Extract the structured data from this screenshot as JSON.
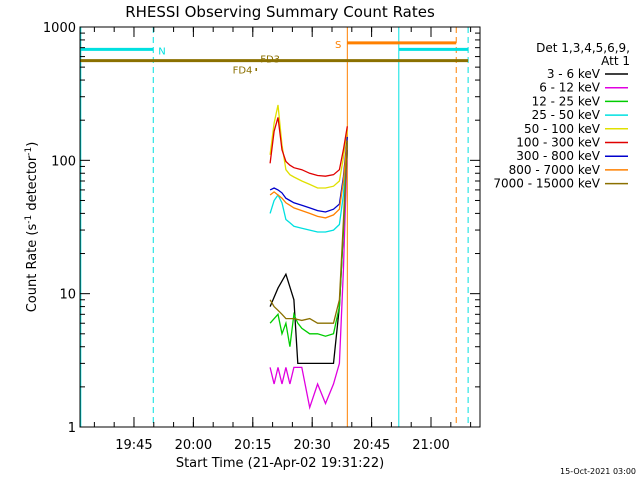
{
  "chart_data": {
    "type": "line",
    "title": "RHESSI Observing Summary Count Rates",
    "xlabel": "Start Time (21-Apr-02 19:31:22)",
    "ylabel_parts": [
      "Count Rate (s",
      "-1",
      " detector",
      "-1",
      ")"
    ],
    "yscale": "log",
    "ylim": [
      1,
      1000
    ],
    "xlim_minutes": [
      0,
      101
    ],
    "yticks": [
      {
        "value": 1,
        "label": "1"
      },
      {
        "value": 10,
        "label": "10"
      },
      {
        "value": 100,
        "label": "100"
      },
      {
        "value": 1000,
        "label": "1000"
      }
    ],
    "xticks": [
      {
        "minute": 13.63,
        "label": "19:45"
      },
      {
        "minute": 28.63,
        "label": "20:00"
      },
      {
        "minute": 43.63,
        "label": "20:15"
      },
      {
        "minute": 58.63,
        "label": "20:30"
      },
      {
        "minute": 73.63,
        "label": "20:45"
      },
      {
        "minute": 88.63,
        "label": "21:00"
      }
    ],
    "legend_header": [
      "Det 1,3,4,5,6,9,",
      "Att 1"
    ],
    "series": [
      {
        "name": "3 - 6 keV",
        "color": "#000000",
        "points": [
          [
            48,
            8
          ],
          [
            50,
            11
          ],
          [
            52,
            14
          ],
          [
            54,
            9
          ],
          [
            55,
            3
          ],
          [
            56,
            3
          ],
          [
            58,
            3
          ],
          [
            60,
            3
          ],
          [
            62,
            3
          ],
          [
            64,
            3
          ],
          [
            65.5,
            8
          ],
          [
            66.5,
            30
          ],
          [
            67.5,
            120
          ]
        ]
      },
      {
        "name": "6 - 12 keV",
        "color": "#e000e0",
        "points": [
          [
            48,
            2.8
          ],
          [
            49,
            2.1
          ],
          [
            50,
            2.8
          ],
          [
            51,
            2.1
          ],
          [
            52,
            2.8
          ],
          [
            53,
            2.1
          ],
          [
            54,
            2.8
          ],
          [
            56,
            2.8
          ],
          [
            58,
            1.4
          ],
          [
            60,
            2.1
          ],
          [
            62,
            1.5
          ],
          [
            64,
            2.1
          ],
          [
            65.5,
            3
          ],
          [
            66.5,
            15
          ],
          [
            67.5,
            130
          ]
        ]
      },
      {
        "name": "12 - 25 keV",
        "color": "#00cc00",
        "points": [
          [
            48,
            6
          ],
          [
            50,
            7
          ],
          [
            51,
            5
          ],
          [
            52,
            6
          ],
          [
            53,
            4
          ],
          [
            54,
            7
          ],
          [
            55,
            6
          ],
          [
            56,
            5.5
          ],
          [
            58,
            5
          ],
          [
            60,
            5
          ],
          [
            62,
            4.8
          ],
          [
            64,
            5
          ],
          [
            65.5,
            8
          ],
          [
            66.5,
            30
          ],
          [
            67.5,
            135
          ]
        ]
      },
      {
        "name": "25 - 50 keV",
        "color": "#00e0e0",
        "points": [
          [
            48,
            40
          ],
          [
            49,
            50
          ],
          [
            50,
            55
          ],
          [
            51,
            48
          ],
          [
            52,
            36
          ],
          [
            53,
            34
          ],
          [
            54,
            32
          ],
          [
            56,
            31
          ],
          [
            58,
            30
          ],
          [
            60,
            29
          ],
          [
            62,
            29
          ],
          [
            64,
            30
          ],
          [
            65.5,
            33
          ],
          [
            66.5,
            55
          ],
          [
            67.5,
            140
          ]
        ]
      },
      {
        "name": "50 - 100 keV",
        "color": "#e0e000",
        "points": [
          [
            48,
            110
          ],
          [
            49,
            190
          ],
          [
            50,
            260
          ],
          [
            51,
            130
          ],
          [
            52,
            85
          ],
          [
            53,
            78
          ],
          [
            54,
            75
          ],
          [
            56,
            70
          ],
          [
            58,
            66
          ],
          [
            60,
            62
          ],
          [
            62,
            62
          ],
          [
            64,
            64
          ],
          [
            65.5,
            70
          ],
          [
            66.5,
            105
          ],
          [
            67.5,
            170
          ]
        ]
      },
      {
        "name": "100 - 300 keV",
        "color": "#e00000",
        "points": [
          [
            48,
            95
          ],
          [
            49,
            165
          ],
          [
            50,
            210
          ],
          [
            51,
            120
          ],
          [
            52,
            98
          ],
          [
            53,
            92
          ],
          [
            54,
            88
          ],
          [
            56,
            85
          ],
          [
            58,
            80
          ],
          [
            60,
            77
          ],
          [
            62,
            76
          ],
          [
            64,
            78
          ],
          [
            65.5,
            85
          ],
          [
            66.5,
            120
          ],
          [
            67.5,
            180
          ]
        ]
      },
      {
        "name": "300 - 800 keV",
        "color": "#0000cc",
        "points": [
          [
            48,
            60
          ],
          [
            49,
            62
          ],
          [
            50,
            60
          ],
          [
            51,
            57
          ],
          [
            52,
            52
          ],
          [
            53,
            50
          ],
          [
            54,
            48
          ],
          [
            56,
            46
          ],
          [
            58,
            44
          ],
          [
            60,
            42
          ],
          [
            62,
            41
          ],
          [
            64,
            43
          ],
          [
            65.5,
            47
          ],
          [
            66.5,
            75
          ],
          [
            67.5,
            150
          ]
        ]
      },
      {
        "name": "800 - 7000 keV",
        "color": "#ff8000",
        "points": [
          [
            48,
            55
          ],
          [
            49,
            58
          ],
          [
            50,
            55
          ],
          [
            51,
            52
          ],
          [
            52,
            48
          ],
          [
            53,
            46
          ],
          [
            54,
            44
          ],
          [
            56,
            42
          ],
          [
            58,
            40
          ],
          [
            60,
            38
          ],
          [
            62,
            37
          ],
          [
            64,
            39
          ],
          [
            65.5,
            43
          ],
          [
            66.5,
            70
          ],
          [
            67.5,
            140
          ]
        ]
      },
      {
        "name": "7000 - 15000 keV",
        "color": "#8b7000",
        "points": [
          [
            48,
            9
          ],
          [
            49,
            8
          ],
          [
            50,
            7.5
          ],
          [
            51,
            7
          ],
          [
            52,
            6.5
          ],
          [
            53,
            6.5
          ],
          [
            54,
            6.5
          ],
          [
            56,
            6.3
          ],
          [
            58,
            6.5
          ],
          [
            60,
            6
          ],
          [
            62,
            6
          ],
          [
            64,
            6
          ],
          [
            65.5,
            9
          ],
          [
            66.5,
            35
          ],
          [
            67.5,
            140
          ]
        ]
      }
    ],
    "flags": [
      {
        "label": "N",
        "color": "#00e0e0",
        "segments": [
          [
            0,
            18.5
          ],
          [
            80.5,
            98
          ]
        ],
        "value": 680
      },
      {
        "label": "S",
        "color": "#ff8000",
        "segments": [
          [
            67.5,
            95
          ]
        ],
        "value": 760
      },
      {
        "label": "FD3",
        "color": "#8b7000",
        "segments": [
          [
            0,
            98
          ]
        ],
        "value": 560
      },
      {
        "label": "FD4",
        "color": "#8b7000",
        "segments": [
          [
            44.3,
            44.7
          ]
        ],
        "value": 480
      }
    ],
    "vlines": [
      {
        "minute": 0.2,
        "color": "#00e0e0",
        "style": "solid"
      },
      {
        "minute": 18.5,
        "color": "#00e0e0",
        "style": "dash"
      },
      {
        "minute": 80.5,
        "color": "#00e0e0",
        "style": "solid"
      },
      {
        "minute": 98,
        "color": "#00e0e0",
        "style": "dash"
      },
      {
        "minute": 67.5,
        "color": "#ff8000",
        "style": "solid"
      },
      {
        "minute": 95,
        "color": "#ff8000",
        "style": "dash"
      }
    ]
  },
  "footer_date": "15-Oct-2021 03:00"
}
